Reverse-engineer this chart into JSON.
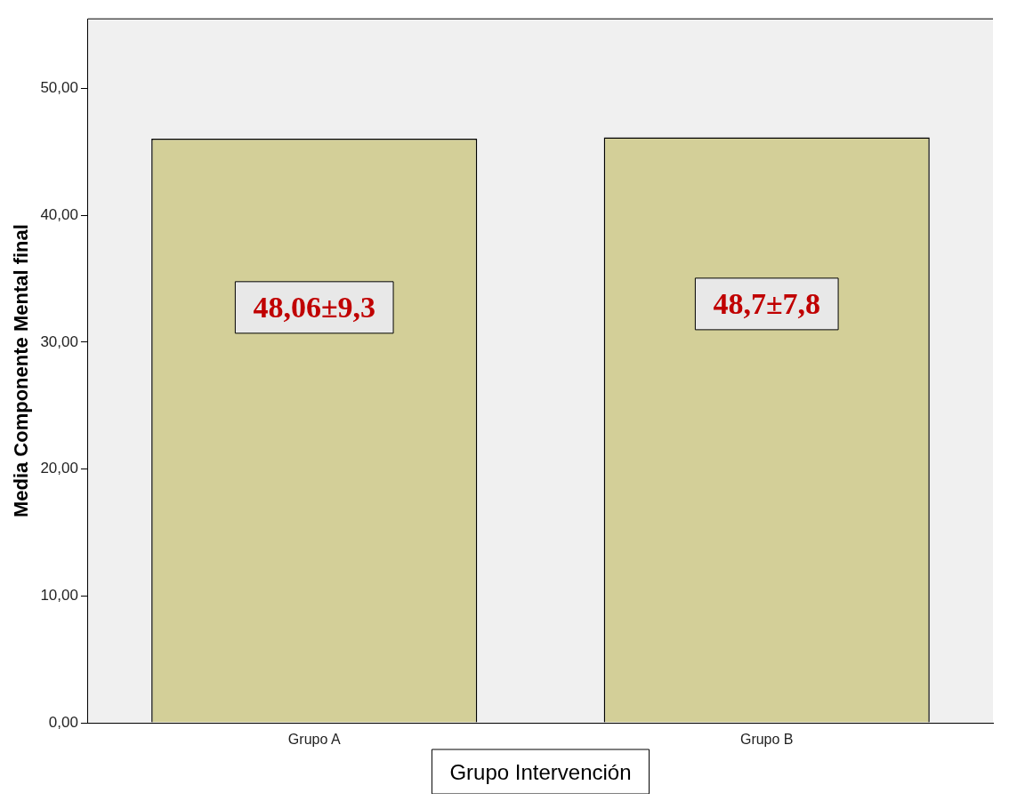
{
  "chart_data": {
    "type": "bar",
    "xlabel": "Grupo Intervención",
    "ylabel": "Media Componente Mental final",
    "categories": [
      "Grupo A",
      "Grupo B"
    ],
    "values": [
      46.05,
      46.15
    ],
    "color": "#d3cf98",
    "ylim": [
      0,
      55.5
    ],
    "yticks": [
      {
        "value": 0,
        "label": "0,00"
      },
      {
        "value": 10,
        "label": "10,00"
      },
      {
        "value": 20,
        "label": "20,00"
      },
      {
        "value": 30,
        "label": "30,00"
      },
      {
        "value": 40,
        "label": "40,00"
      },
      {
        "value": 50,
        "label": "50,00"
      }
    ],
    "annotations": [
      "48,06±9,3",
      "48,7±7,8"
    ],
    "grid": false,
    "legend": false
  }
}
